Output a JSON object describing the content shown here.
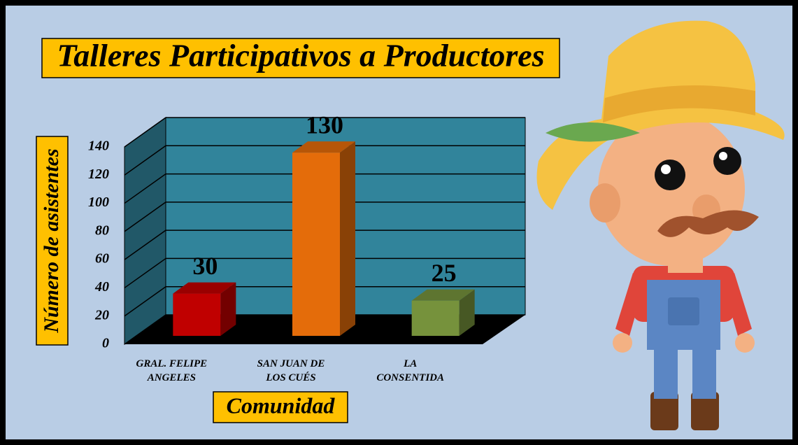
{
  "chart_data": {
    "type": "bar3d",
    "title": "Talleres Participativos a Productores",
    "x_label": "Comunidad",
    "y_label": "Número de asistentes",
    "categories": [
      "GRAL. FELIPE ANGELES",
      "SAN JUAN DE LOS CUÉS",
      "LA CONSENTIDA"
    ],
    "values": [
      30,
      130,
      25
    ],
    "colors": [
      "#c00000",
      "#e46c0a",
      "#76923c"
    ],
    "ylim": [
      0,
      140
    ],
    "yticks": [
      0,
      20,
      40,
      60,
      80,
      100,
      120,
      140
    ],
    "grid": true
  }
}
